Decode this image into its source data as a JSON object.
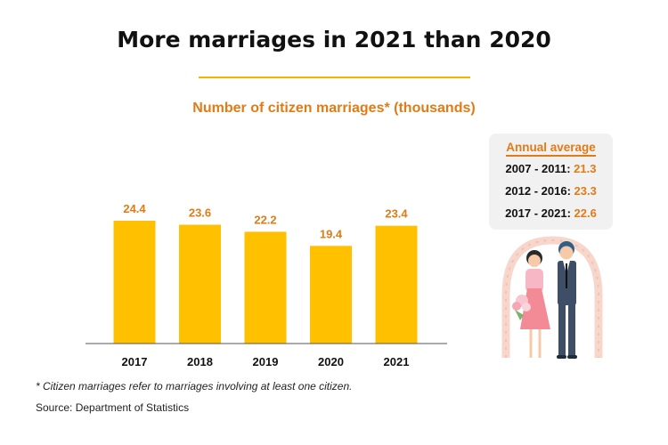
{
  "title": "More marriages in 2021 than 2020",
  "subtitle": "Number of citizen marriages* (thousands)",
  "footnote": "* Citizen marriages refer to marriages involving at least one citizen.",
  "source": "Source: Department of Statistics",
  "annual_average": {
    "title": "Annual average",
    "rows": [
      {
        "period": "2007 - 2011: ",
        "value": "21.3"
      },
      {
        "period": "2012 - 2016: ",
        "value": "23.3"
      },
      {
        "period": "2017 - 2021: ",
        "value": "22.6"
      }
    ]
  },
  "colors": {
    "bar": "#ffc000",
    "value_label": "#e07b16",
    "accent_rule": "#f5b400",
    "axis": "#555555"
  },
  "chart_data": {
    "type": "bar",
    "categories": [
      "2017",
      "2018",
      "2019",
      "2020",
      "2021"
    ],
    "values": [
      24.4,
      23.6,
      22.2,
      19.4,
      23.4
    ],
    "title": "More marriages in 2021 than 2020",
    "subtitle": "Number of citizen marriages* (thousands)",
    "xlabel": "",
    "ylabel": "",
    "ylim": [
      0,
      24.4
    ],
    "grid": false,
    "data_labels": true
  }
}
